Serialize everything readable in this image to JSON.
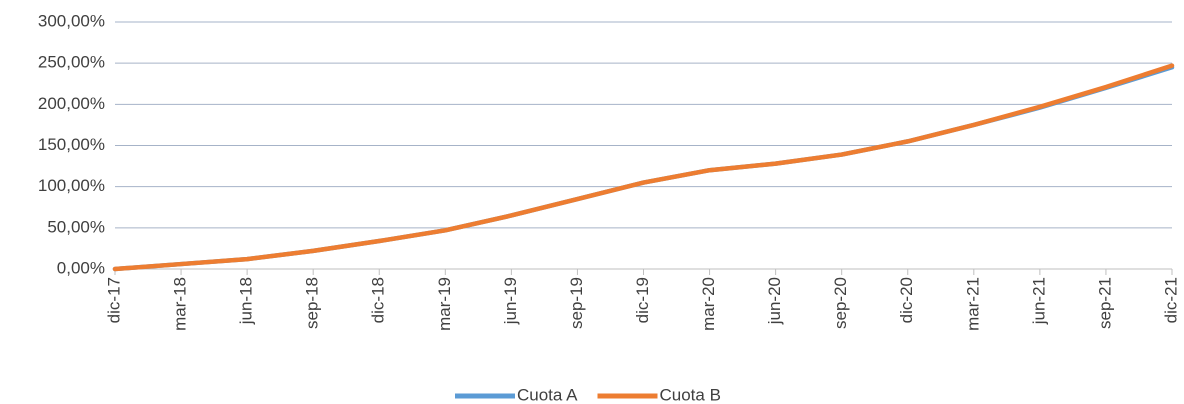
{
  "chart_data": {
    "type": "line",
    "categories": [
      "dic-17",
      "mar-18",
      "jun-18",
      "sep-18",
      "dic-18",
      "mar-19",
      "jun-19",
      "sep-19",
      "dic-19",
      "mar-20",
      "jun-20",
      "sep-20",
      "dic-20",
      "mar-21",
      "jun-21",
      "sep-21",
      "dic-21"
    ],
    "series": [
      {
        "name": "Cuota A",
        "color": "#5b9bd5",
        "values": [
          0,
          6,
          12,
          22,
          34,
          47,
          65,
          85,
          105,
          120,
          128,
          139,
          155,
          175,
          196,
          220,
          245
        ]
      },
      {
        "name": "Cuota B",
        "color": "#ed7d31",
        "values": [
          0,
          6,
          12,
          22,
          34,
          47,
          65,
          85,
          105,
          120,
          128,
          139,
          155,
          175,
          197,
          221,
          247
        ]
      }
    ],
    "ylim": [
      0,
      300
    ],
    "yticks": [
      {
        "value": 0,
        "label": "0,00%"
      },
      {
        "value": 50,
        "label": "50,00%"
      },
      {
        "value": 100,
        "label": "100,00%"
      },
      {
        "value": 150,
        "label": "150,00%"
      },
      {
        "value": 200,
        "label": "200,00%"
      },
      {
        "value": 250,
        "label": "250,00%"
      },
      {
        "value": 300,
        "label": "300,00%"
      }
    ],
    "grid": true,
    "legend": "bottom"
  }
}
